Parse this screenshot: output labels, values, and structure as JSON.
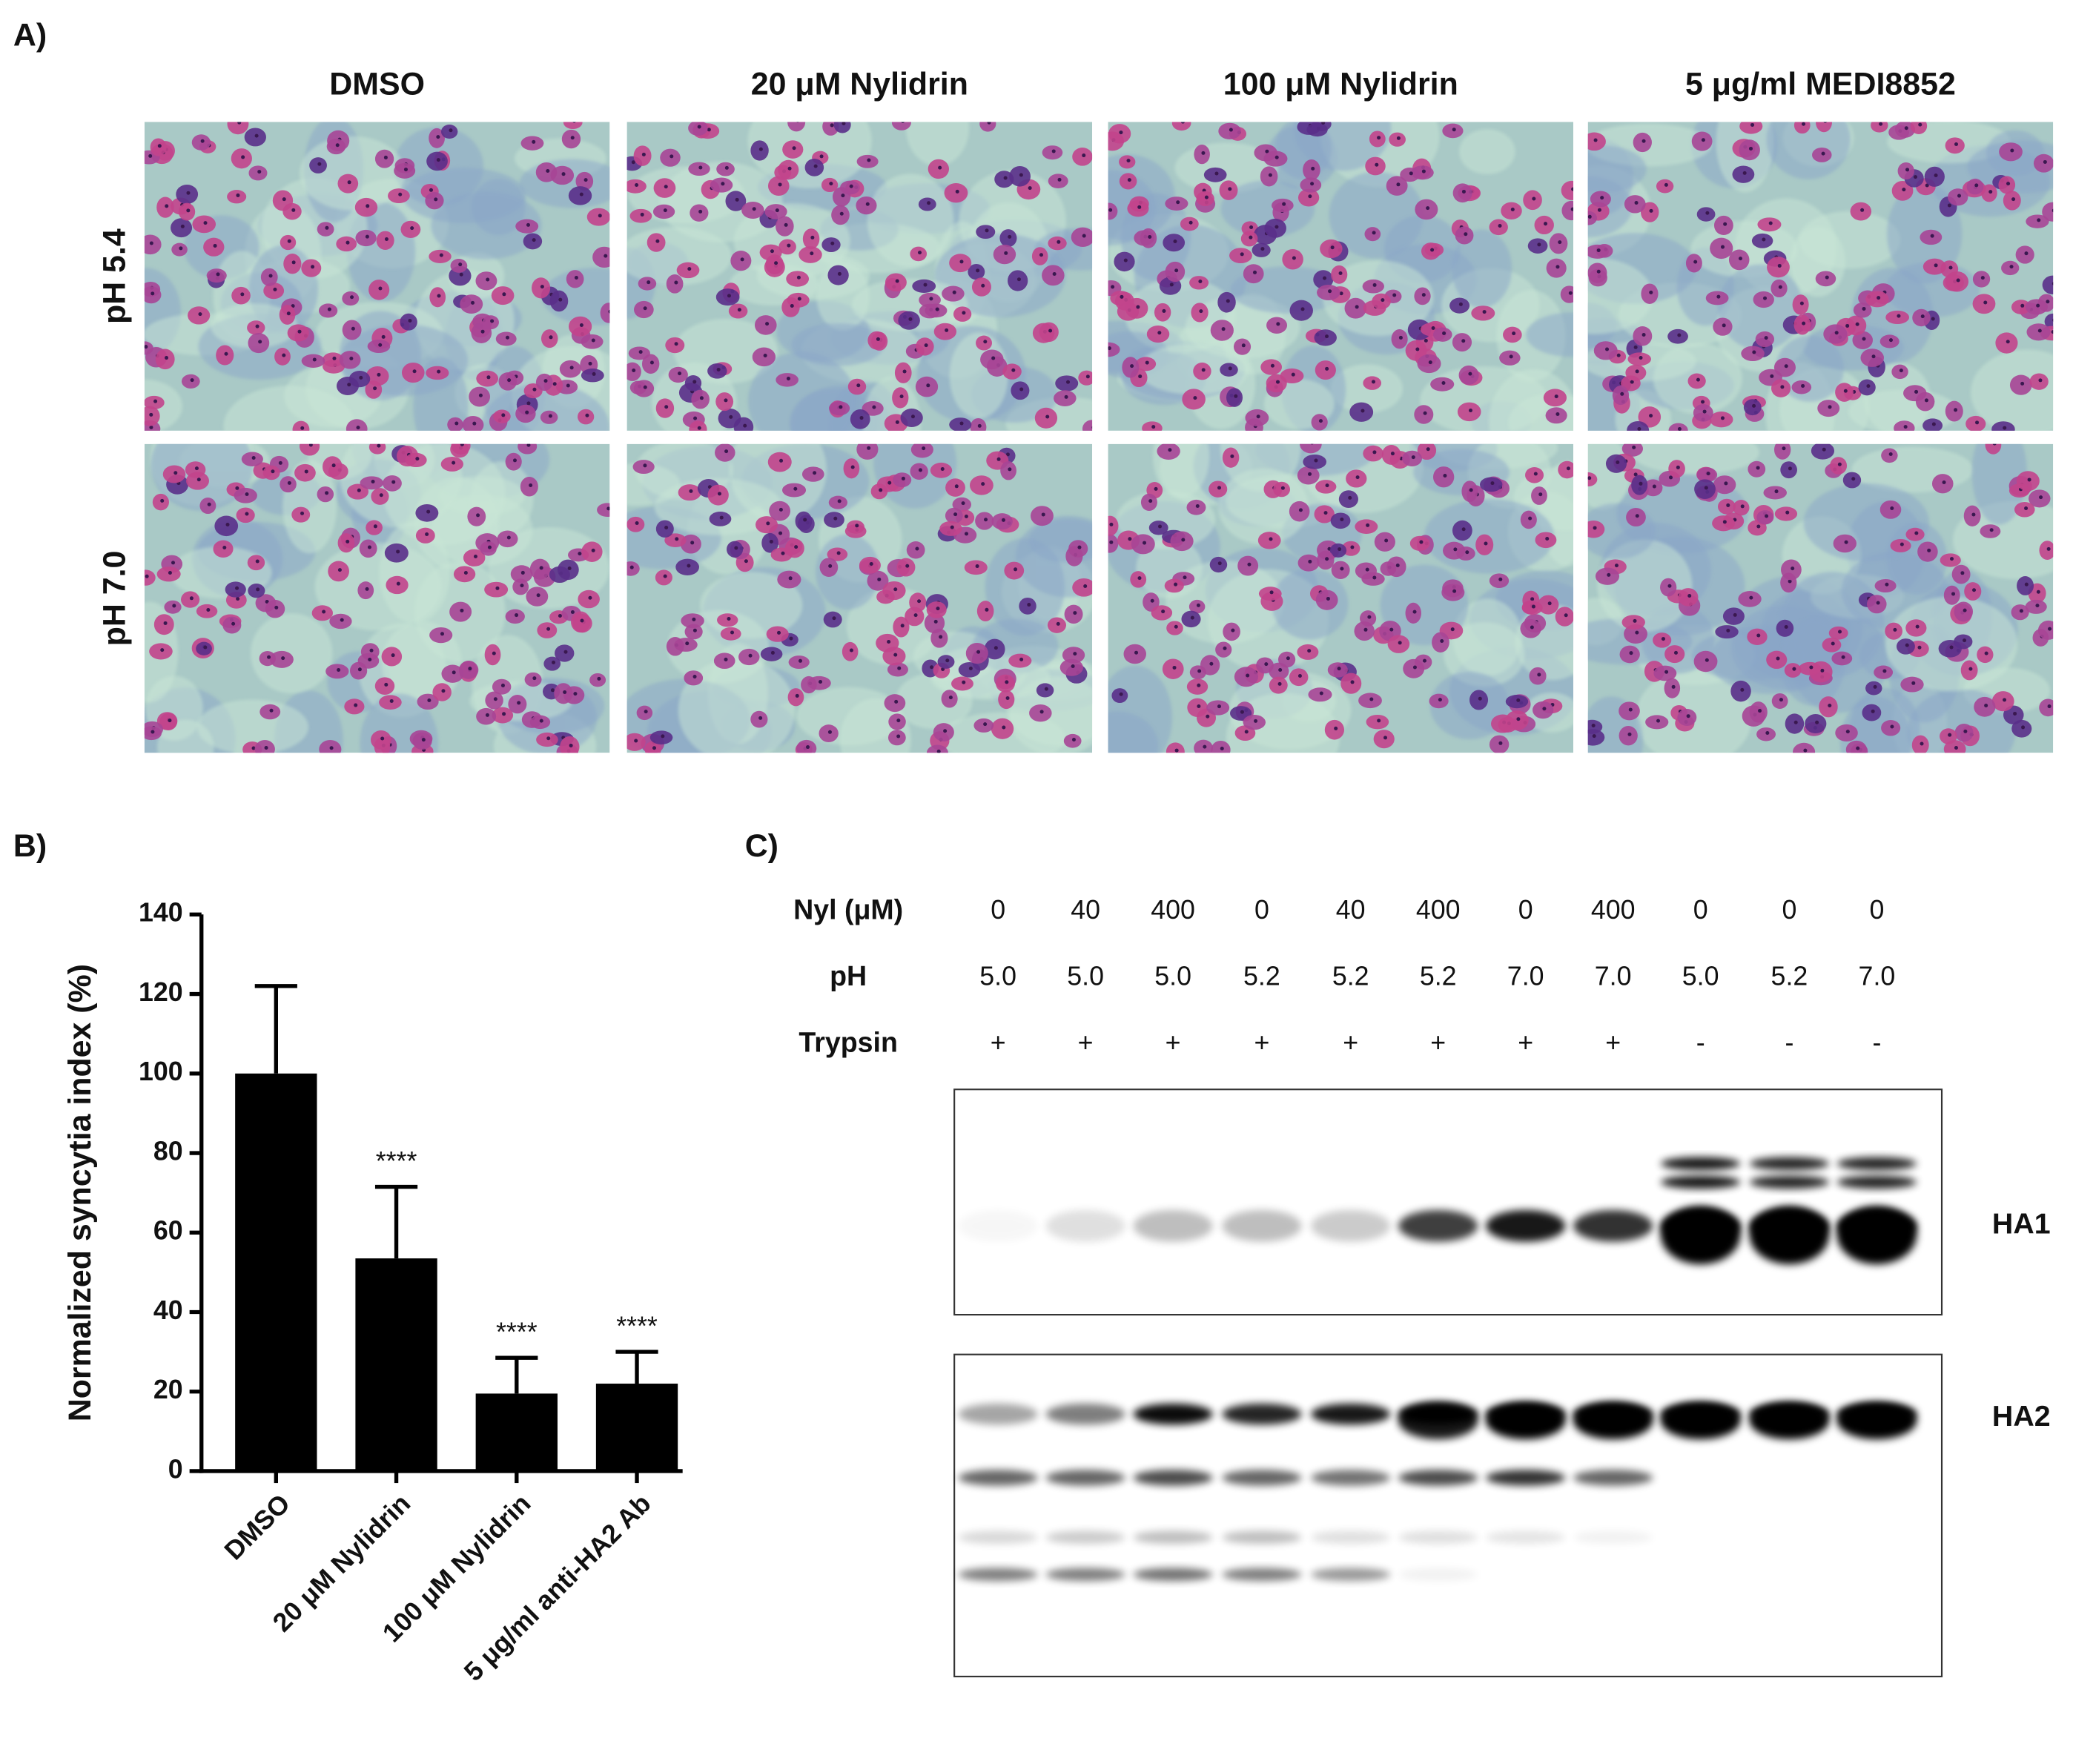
{
  "panel_a": {
    "label": "A)",
    "columns": [
      "DMSO",
      "20 μM Nylidrin",
      "100 μM Nylidrin",
      "5 μg/ml MEDI8852"
    ],
    "rows": [
      "pH 5.4",
      "pH 7.0"
    ]
  },
  "chart_data": {
    "type": "bar",
    "label": "B)",
    "ylabel": "Normalized syncytia index (%)",
    "categories": [
      "DMSO",
      "20 μM Nylidrin",
      "100 μM Nylidrin",
      "5 μg/ml anti-HA2 Ab"
    ],
    "values": [
      100,
      53.5,
      19.5,
      22
    ],
    "errors": [
      22,
      18,
      9,
      8
    ],
    "annotations": [
      "****",
      "****",
      "****"
    ],
    "color": "#000000",
    "ylim": [
      0,
      140
    ],
    "yticks": [
      0,
      20,
      40,
      60,
      80,
      100,
      120,
      140
    ]
  },
  "panel_c": {
    "label": "C)",
    "rows": [
      {
        "label": "Nyl (μM)",
        "values": [
          "0",
          "40",
          "400",
          "0",
          "40",
          "400",
          "0",
          "400",
          "0",
          "0",
          "0"
        ]
      },
      {
        "label": "pH",
        "values": [
          "5.0",
          "5.0",
          "5.0",
          "5.2",
          "5.2",
          "5.2",
          "7.0",
          "7.0",
          "5.0",
          "5.2",
          "7.0"
        ]
      },
      {
        "label": "Trypsin",
        "values": [
          "+",
          "+",
          "+",
          "+",
          "+",
          "+",
          "+",
          "+",
          "-",
          "-",
          "-"
        ]
      }
    ],
    "band_labels": [
      "HA1",
      "HA2"
    ]
  }
}
